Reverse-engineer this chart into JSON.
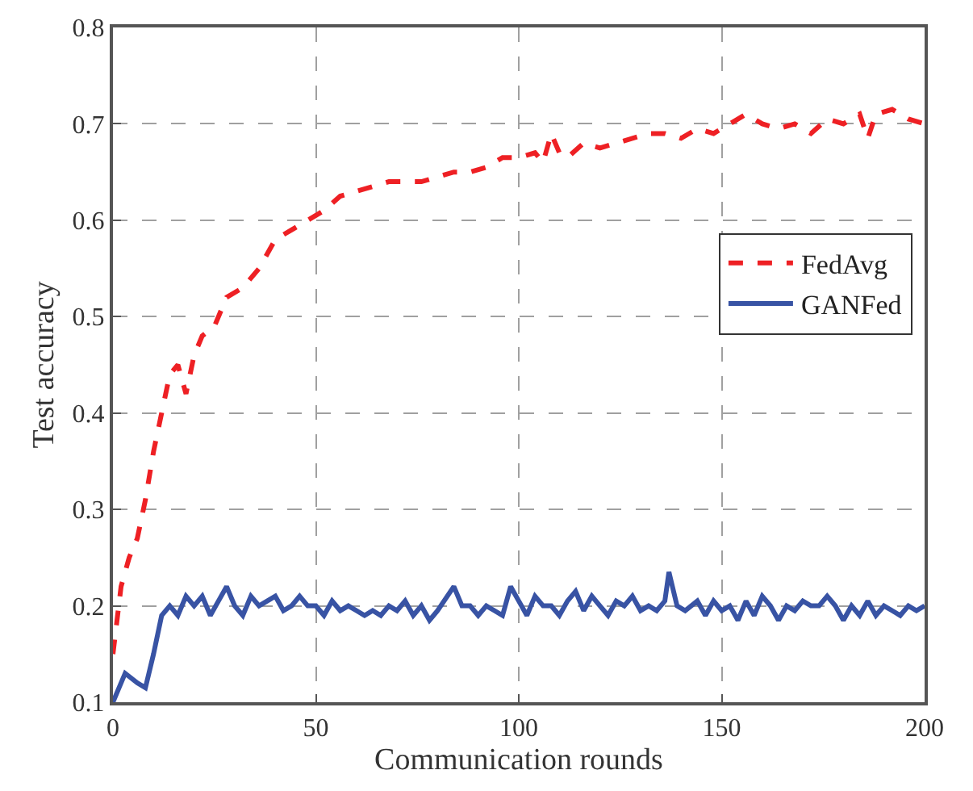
{
  "chart_data": {
    "type": "line",
    "xlabel": "Communication rounds",
    "ylabel": "Test accuracy",
    "xlim": [
      0,
      200
    ],
    "xticks": [
      0,
      50,
      100,
      150,
      200
    ],
    "ylim": [
      0.1,
      0.8
    ],
    "yticks": [
      0.1,
      0.2,
      0.3,
      0.4,
      0.5,
      0.6,
      0.7,
      0.8
    ],
    "grid": true,
    "legend": "right",
    "series": [
      {
        "name": "FedAvg",
        "color": "#ee2024",
        "line_style": "dashed",
        "x": [
          0,
          2,
          4,
          6,
          8,
          10,
          12,
          14,
          16,
          18,
          20,
          22,
          25,
          28,
          32,
          36,
          40,
          44,
          48,
          52,
          56,
          60,
          64,
          68,
          72,
          76,
          80,
          84,
          88,
          92,
          96,
          100,
          104,
          106,
          108,
          110,
          112,
          116,
          120,
          124,
          128,
          132,
          136,
          140,
          144,
          148,
          152,
          156,
          160,
          164,
          168,
          172,
          176,
          180,
          184,
          186,
          188,
          192,
          196,
          200
        ],
        "values": [
          0.15,
          0.22,
          0.25,
          0.27,
          0.31,
          0.36,
          0.4,
          0.44,
          0.45,
          0.42,
          0.46,
          0.48,
          0.49,
          0.52,
          0.53,
          0.55,
          0.58,
          0.59,
          0.6,
          0.61,
          0.625,
          0.63,
          0.635,
          0.64,
          0.64,
          0.64,
          0.645,
          0.65,
          0.65,
          0.655,
          0.665,
          0.665,
          0.67,
          0.66,
          0.69,
          0.67,
          0.665,
          0.68,
          0.675,
          0.68,
          0.685,
          0.69,
          0.69,
          0.685,
          0.695,
          0.69,
          0.7,
          0.71,
          0.7,
          0.695,
          0.7,
          0.69,
          0.705,
          0.7,
          0.71,
          0.685,
          0.71,
          0.715,
          0.705,
          0.7
        ]
      },
      {
        "name": "GANFed",
        "color": "#3853a4",
        "line_style": "solid",
        "x": [
          0,
          3,
          6,
          8,
          10,
          12,
          14,
          16,
          18,
          20,
          22,
          24,
          26,
          28,
          30,
          32,
          34,
          36,
          38,
          40,
          42,
          44,
          46,
          48,
          50,
          52,
          54,
          56,
          58,
          60,
          62,
          64,
          66,
          68,
          70,
          72,
          74,
          76,
          78,
          80,
          84,
          86,
          88,
          90,
          92,
          94,
          96,
          98,
          100,
          102,
          104,
          106,
          108,
          110,
          112,
          114,
          116,
          118,
          120,
          122,
          124,
          126,
          128,
          130,
          132,
          134,
          136,
          137,
          139,
          141,
          144,
          146,
          148,
          150,
          152,
          154,
          156,
          158,
          160,
          162,
          164,
          166,
          168,
          170,
          172,
          174,
          176,
          178,
          180,
          182,
          184,
          186,
          188,
          190,
          192,
          194,
          196,
          198,
          200
        ],
        "values": [
          0.1,
          0.13,
          0.12,
          0.115,
          0.15,
          0.19,
          0.2,
          0.19,
          0.21,
          0.2,
          0.21,
          0.19,
          0.205,
          0.22,
          0.2,
          0.19,
          0.21,
          0.2,
          0.205,
          0.21,
          0.195,
          0.2,
          0.21,
          0.2,
          0.2,
          0.19,
          0.205,
          0.195,
          0.2,
          0.195,
          0.19,
          0.195,
          0.19,
          0.2,
          0.195,
          0.205,
          0.19,
          0.2,
          0.185,
          0.195,
          0.22,
          0.2,
          0.2,
          0.19,
          0.2,
          0.195,
          0.19,
          0.22,
          0.205,
          0.19,
          0.21,
          0.2,
          0.2,
          0.19,
          0.205,
          0.215,
          0.195,
          0.21,
          0.2,
          0.19,
          0.205,
          0.2,
          0.21,
          0.195,
          0.2,
          0.195,
          0.205,
          0.235,
          0.2,
          0.195,
          0.205,
          0.19,
          0.205,
          0.195,
          0.2,
          0.185,
          0.205,
          0.19,
          0.21,
          0.2,
          0.185,
          0.2,
          0.195,
          0.205,
          0.2,
          0.2,
          0.21,
          0.2,
          0.185,
          0.2,
          0.19,
          0.205,
          0.19,
          0.2,
          0.195,
          0.19,
          0.2,
          0.195,
          0.2
        ]
      }
    ]
  }
}
